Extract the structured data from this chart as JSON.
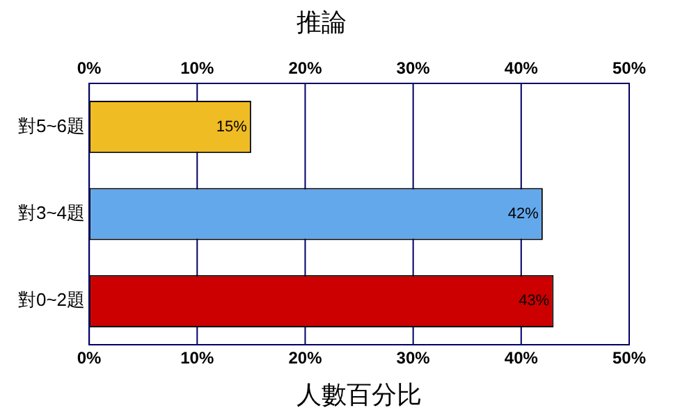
{
  "chart_data": {
    "type": "bar",
    "orientation": "horizontal",
    "title": "推論",
    "xlabel": "人數百分比",
    "categories": [
      "對5~6題",
      "對3~4題",
      "對0~2題"
    ],
    "values": [
      15,
      42,
      43
    ],
    "colors": [
      "#f0bc24",
      "#64a8ec",
      "#cc0000"
    ],
    "value_labels": [
      "15%",
      "42%",
      "43%"
    ],
    "xlim": [
      0,
      50
    ],
    "xticks": [
      {
        "value": 0,
        "label": "0%"
      },
      {
        "value": 10,
        "label": "10%"
      },
      {
        "value": 20,
        "label": "20%"
      },
      {
        "value": 30,
        "label": "30%"
      },
      {
        "value": 40,
        "label": "40%"
      },
      {
        "value": 50,
        "label": "50%"
      }
    ],
    "x2lim": [
      0,
      50
    ],
    "x2ticks": [
      {
        "value": 0,
        "label": "0%"
      },
      {
        "value": 10,
        "label": "10%"
      },
      {
        "value": 20,
        "label": "20%"
      },
      {
        "value": 30,
        "label": "30%"
      },
      {
        "value": 40,
        "label": "40%"
      },
      {
        "value": 50,
        "label": "50%"
      }
    ],
    "grid": "x",
    "legend": false
  }
}
